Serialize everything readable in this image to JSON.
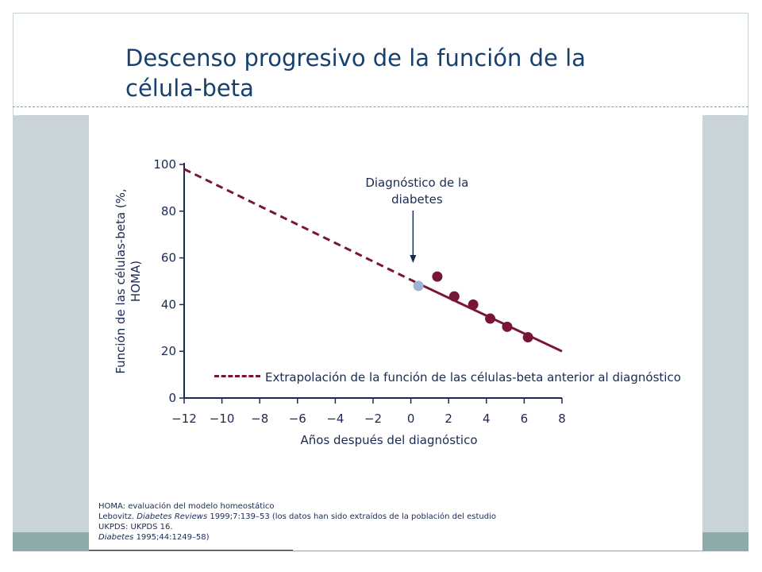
{
  "slide": {
    "title": "Descenso progresivo de la función de la\ncélula-beta"
  },
  "chart_data": {
    "type": "scatter",
    "xlabel": "Años después del diagnóstico",
    "ylabel": "Función de las células-beta (%, HOMA)",
    "xlim": [
      -12,
      8
    ],
    "ylim": [
      0,
      100
    ],
    "x_ticks": [
      "−12",
      "−10",
      "−8",
      "−6",
      "−4",
      "−2",
      "0",
      "2",
      "4",
      "6",
      "8"
    ],
    "y_ticks": [
      "0",
      "20",
      "40",
      "60",
      "80",
      "100"
    ],
    "annotation": {
      "text": "Diagnóstico de la\ndiabetes",
      "x": 0.2
    },
    "series": [
      {
        "name": "Extrapolación de la función de las células-beta anterior al diagnóstico",
        "style": "dashed",
        "color": "#7a1635",
        "x": [
          -12,
          0.4
        ],
        "y": [
          98,
          49
        ]
      },
      {
        "style": "solid",
        "color": "#7a1635",
        "x": [
          0.4,
          8
        ],
        "y": [
          49,
          20
        ]
      },
      {
        "style": "points",
        "color": "#7a1635",
        "x": [
          1.4,
          2.3,
          3.3,
          4.2,
          5.1,
          6.2
        ],
        "y": [
          52,
          43.5,
          40,
          34,
          30.5,
          26
        ]
      },
      {
        "style": "point",
        "color": "#9fb2d4",
        "x": [
          0.4
        ],
        "y": [
          48
        ]
      }
    ]
  },
  "footnotes": {
    "homa": "HOMA: evaluación del modelo homeostático",
    "lebovitz_prefix": "Lebovitz. ",
    "lebovitz_journal": "Diabetes Reviews",
    "lebovitz_rest": " 1999;7:139–53 (los datos han sido extraídos de la población del estudio",
    "ukpds": "UKPDS: UKPDS 16.",
    "diabetes_journal": "Diabetes",
    "diabetes_rest": " 1995;44:1249–58)"
  }
}
